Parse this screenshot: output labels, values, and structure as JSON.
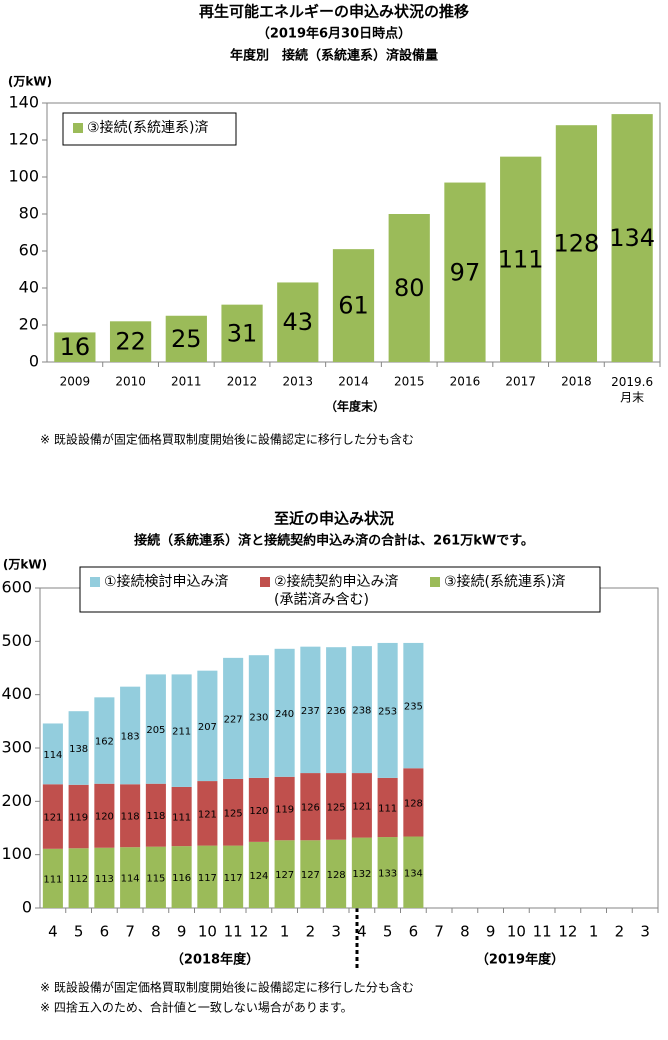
{
  "chart_data": [
    {
      "type": "bar",
      "title": "再生可能エネルギーの申込み状況の推移",
      "subtitle": "（2019年6月30日時点）",
      "subtitle2": "年度別　接続（系統連系）済設備量",
      "y_label": "(万kW)",
      "x_label": "（年度末）",
      "categories": [
        "2009",
        "2010",
        "2011",
        "2012",
        "2013",
        "2014",
        "2015",
        "2016",
        "2017",
        "2018",
        "2019.6\n月末"
      ],
      "series": [
        {
          "name": "③接続(系統連系)済",
          "color": "#9bbb59",
          "values": [
            16,
            22,
            25,
            31,
            43,
            61,
            80,
            97,
            111,
            128,
            134
          ]
        }
      ],
      "ylim": [
        0,
        140
      ],
      "yticks": [
        0,
        20,
        40,
        60,
        80,
        100,
        120,
        140
      ],
      "legend": "upper left",
      "footnotes": [
        "※ 既設設備が固定価格買取制度開始後に設備認定に移行した分も含む"
      ]
    },
    {
      "type": "stacked_bar",
      "title": "至近の申込み状況",
      "subtitle": "接続（系統連系）済と接続契約申込み済の合計は、261万kWです。",
      "y_label": "(万kW)",
      "categories": [
        "4",
        "5",
        "6",
        "7",
        "8",
        "9",
        "10",
        "11",
        "12",
        "1",
        "2",
        "3",
        "4",
        "5",
        "6",
        "7",
        "8",
        "9",
        "10",
        "11",
        "12",
        "1",
        "2",
        "3"
      ],
      "groups": [
        "（2018年度）",
        "（2019年度）"
      ],
      "series": [
        {
          "name": "③接続(系統連系)済",
          "color": "#9bbb59",
          "values": [
            111,
            112,
            113,
            114,
            115,
            116,
            117,
            117,
            124,
            127,
            127,
            128,
            132,
            133,
            134,
            null,
            null,
            null,
            null,
            null,
            null,
            null,
            null,
            null
          ]
        },
        {
          "name": "②接続契約申込み済\n(承諾済み含む)",
          "color": "#c0504d",
          "values": [
            121,
            119,
            120,
            118,
            118,
            111,
            121,
            125,
            120,
            119,
            126,
            125,
            121,
            111,
            128,
            null,
            null,
            null,
            null,
            null,
            null,
            null,
            null,
            null
          ]
        },
        {
          "name": "①接続検討申込み済",
          "color": "#93cddd",
          "values": [
            114,
            138,
            162,
            183,
            205,
            211,
            207,
            227,
            230,
            240,
            237,
            236,
            238,
            253,
            235,
            null,
            null,
            null,
            null,
            null,
            null,
            null,
            null,
            null
          ]
        }
      ],
      "ylim": [
        0,
        600
      ],
      "yticks": [
        0,
        100,
        200,
        300,
        400,
        500,
        600
      ],
      "legend": "upper center",
      "footnotes": [
        "※ 既設設備が固定価格買取制度開始後に設備認定に移行した分も含む",
        "※ 四捨五入のため、合計値と一致しない場合があります。"
      ]
    }
  ]
}
